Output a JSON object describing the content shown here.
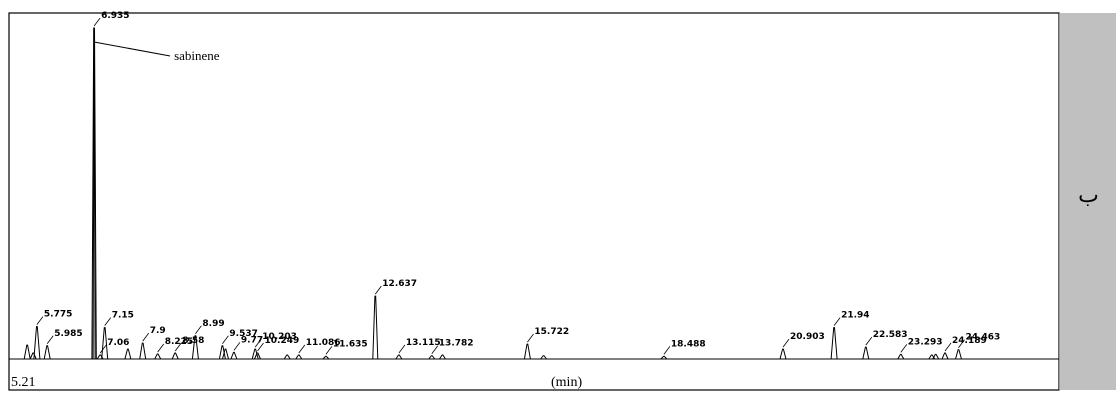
{
  "side_panel": {
    "label": "ب"
  },
  "chart_data": {
    "type": "line",
    "title": "",
    "xlabel": "(min)",
    "ylabel": "",
    "x_start_label": "5.21",
    "xlim": [
      5.21,
      26.5
    ],
    "ylim": [
      0,
      1000
    ],
    "grid": false,
    "peaks": [
      {
        "rt": 5.58,
        "h": 42,
        "label": ""
      },
      {
        "rt": 5.7,
        "h": 18,
        "label": ""
      },
      {
        "rt": 5.775,
        "h": 98,
        "label": "5.775"
      },
      {
        "rt": 5.985,
        "h": 40,
        "label": "5.985"
      },
      {
        "rt": 6.935,
        "h": 1000,
        "label": "6.935"
      },
      {
        "rt": 7.15,
        "h": 95,
        "label": "7.15"
      },
      {
        "rt": 7.06,
        "h": 12,
        "label": "7.06"
      },
      {
        "rt": 7.62,
        "h": 30,
        "label": ""
      },
      {
        "rt": 7.92,
        "h": 48,
        "label": "7.9"
      },
      {
        "rt": 8.225,
        "h": 15,
        "label": "8.225"
      },
      {
        "rt": 8.58,
        "h": 18,
        "label": "8.58"
      },
      {
        "rt": 8.99,
        "h": 70,
        "label": "8.99"
      },
      {
        "rt": 9.537,
        "h": 40,
        "label": "9.537"
      },
      {
        "rt": 9.6,
        "h": 30,
        "label": ""
      },
      {
        "rt": 9.77,
        "h": 20,
        "label": "9.77"
      },
      {
        "rt": 10.203,
        "h": 30,
        "label": "10.203"
      },
      {
        "rt": 10.249,
        "h": 18,
        "label": "10.249"
      },
      {
        "rt": 10.85,
        "h": 12,
        "label": ""
      },
      {
        "rt": 11.086,
        "h": 12,
        "label": "11.086"
      },
      {
        "rt": 11.635,
        "h": 8,
        "label": "11.635"
      },
      {
        "rt": 12.637,
        "h": 190,
        "label": "12.637"
      },
      {
        "rt": 13.115,
        "h": 12,
        "label": "13.115"
      },
      {
        "rt": 13.782,
        "h": 10,
        "label": "13.782"
      },
      {
        "rt": 14.0,
        "h": 12,
        "label": ""
      },
      {
        "rt": 15.722,
        "h": 45,
        "label": "15.722"
      },
      {
        "rt": 16.05,
        "h": 10,
        "label": ""
      },
      {
        "rt": 18.488,
        "h": 8,
        "label": "18.488"
      },
      {
        "rt": 20.903,
        "h": 30,
        "label": "20.903"
      },
      {
        "rt": 21.94,
        "h": 95,
        "label": "21.94"
      },
      {
        "rt": 22.583,
        "h": 36,
        "label": "22.583"
      },
      {
        "rt": 23.293,
        "h": 14,
        "label": "23.293"
      },
      {
        "rt": 23.92,
        "h": 12,
        "label": ""
      },
      {
        "rt": 24.0,
        "h": 14,
        "label": ""
      },
      {
        "rt": 24.189,
        "h": 18,
        "label": "24.189"
      },
      {
        "rt": 24.463,
        "h": 28,
        "label": "24.463"
      }
    ],
    "annotations": [
      {
        "text": "sabinene",
        "target_rt": 6.935
      }
    ]
  }
}
